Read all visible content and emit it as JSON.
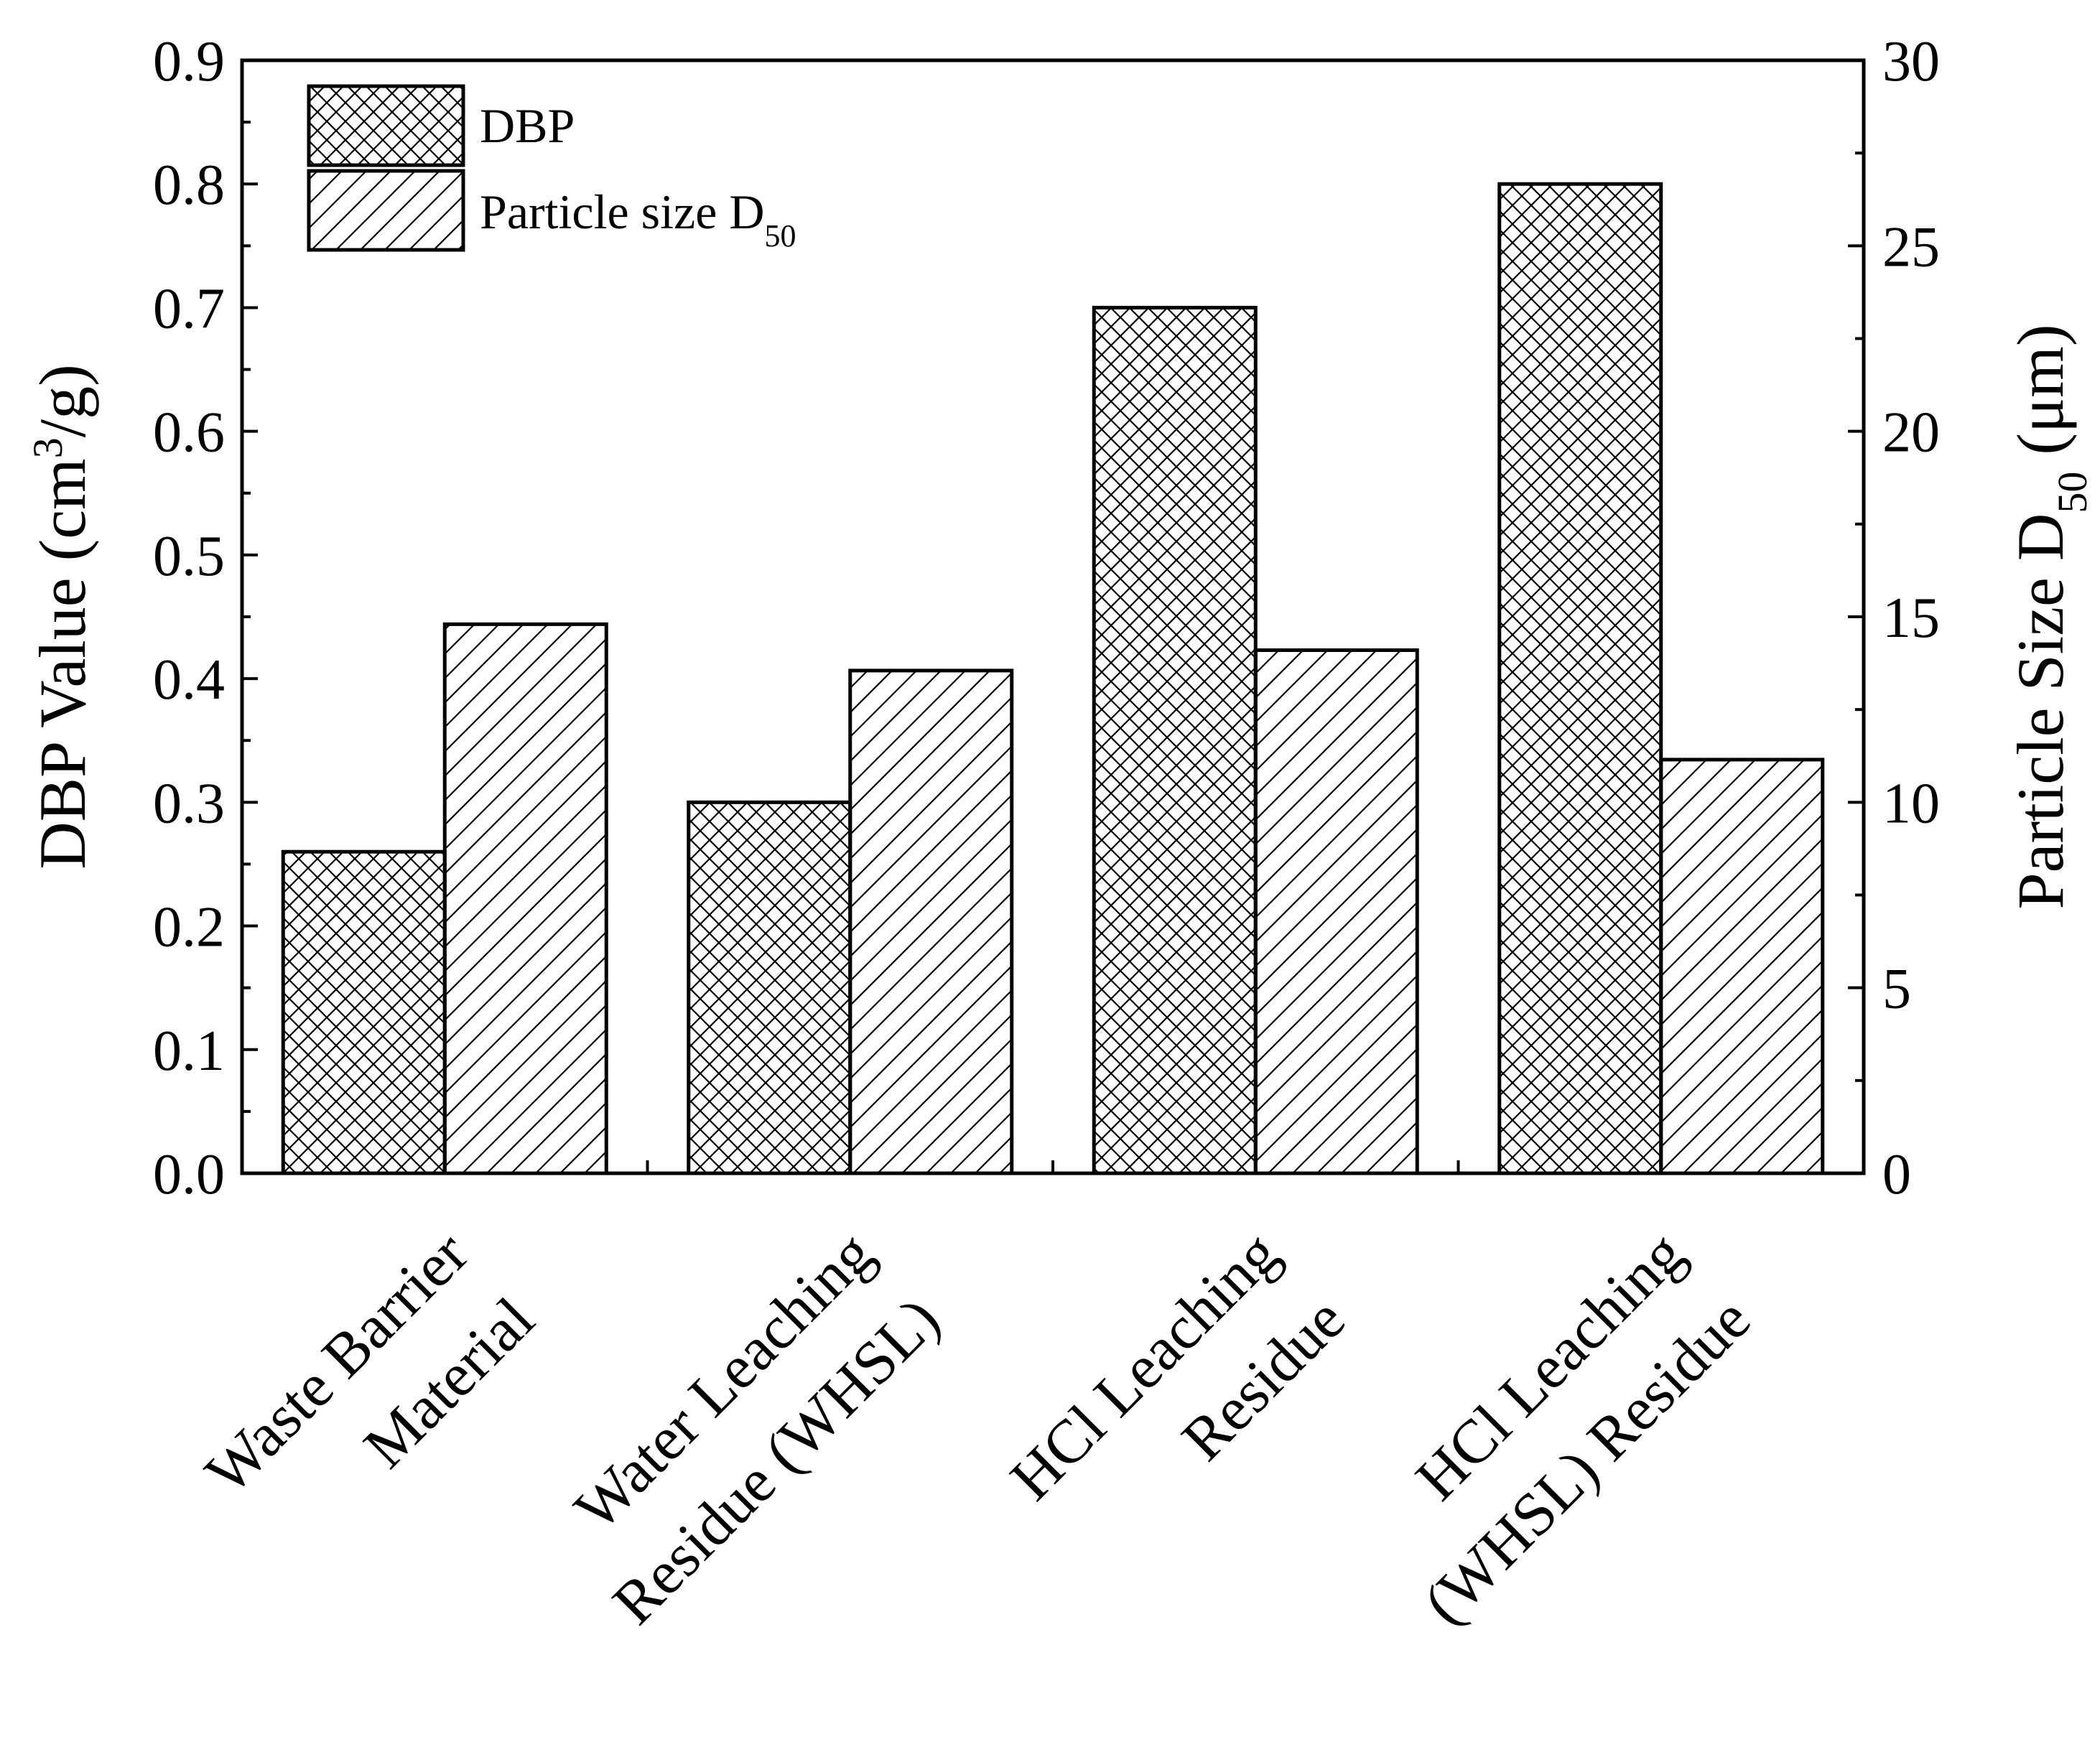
{
  "chart_data": {
    "type": "bar",
    "categories": [
      [
        "Waste Barrier",
        "Material"
      ],
      [
        "Water Leaching",
        "Residue (WHSL)"
      ],
      [
        "HCl Leaching",
        "Residue"
      ],
      [
        "HCl Leaching",
        "(WHSL) Residue"
      ]
    ],
    "series": [
      {
        "name": "DBP",
        "axis": "left",
        "pattern": "crosshatch",
        "values": [
          0.26,
          0.3,
          0.7,
          0.8
        ]
      },
      {
        "name": "Particle size D",
        "name_subscript": "50",
        "axis": "right",
        "pattern": "diagonal",
        "values": [
          14.8,
          13.55,
          14.1,
          11.15
        ]
      }
    ],
    "left_axis": {
      "title_prefix": "DBP Value (cm",
      "title_superscript": "3",
      "title_suffix": "/g)",
      "ylim": [
        0,
        0.9
      ],
      "ticks": [
        "0.0",
        "0.1",
        "0.2",
        "0.3",
        "0.4",
        "0.5",
        "0.6",
        "0.7",
        "0.8",
        "0.9"
      ]
    },
    "right_axis": {
      "title_prefix": "Particle Size D",
      "title_subscript": "50",
      "title_suffix": " (μm)",
      "ylim": [
        0,
        30
      ],
      "ticks": [
        "0",
        "5",
        "10",
        "15",
        "20",
        "25",
        "30"
      ]
    },
    "legend_position": "top-left",
    "grid": false
  }
}
